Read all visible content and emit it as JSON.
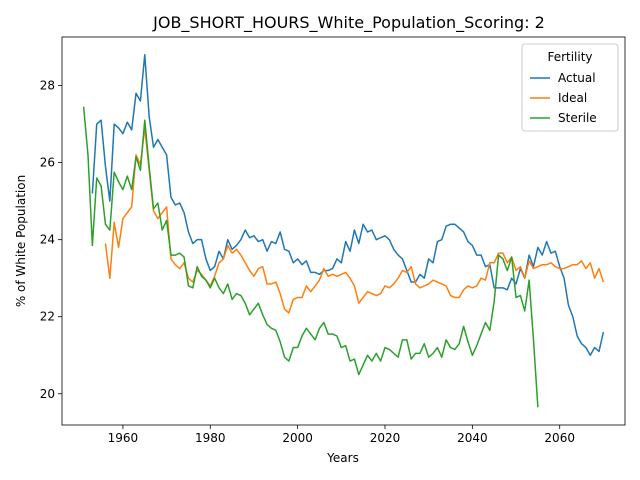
{
  "chart_data": {
    "type": "line",
    "title": "JOB_SHORT_HOURS_White_Population_Scoring: 2",
    "xlabel": "Years",
    "ylabel": "% of White Population",
    "xlim": [
      1946.05,
      2074.95
    ],
    "ylim": [
      19.19,
      29.26
    ],
    "xticks": [
      1960,
      1980,
      2000,
      2020,
      2040,
      2060
    ],
    "yticks": [
      20,
      22,
      24,
      26,
      28
    ],
    "grid": false,
    "legend": {
      "title": "Fertility",
      "placement": "upper right"
    },
    "series": [
      {
        "name": "Actual",
        "color": "#1f77b4",
        "x": [
          1953,
          1954,
          1955,
          1956,
          1957,
          1958,
          1959,
          1960,
          1961,
          1962,
          1963,
          1964,
          1965,
          1966,
          1967,
          1968,
          1969,
          1970,
          1971,
          1972,
          1973,
          1974,
          1975,
          1976,
          1977,
          1978,
          1979,
          1980,
          1981,
          1982,
          1983,
          1984,
          1985,
          1986,
          1987,
          1988,
          1989,
          1990,
          1991,
          1992,
          1993,
          1994,
          1995,
          1996,
          1997,
          1998,
          1999,
          2000,
          2001,
          2002,
          2003,
          2004,
          2005,
          2006,
          2007,
          2008,
          2009,
          2010,
          2011,
          2012,
          2013,
          2014,
          2015,
          2016,
          2017,
          2018,
          2019,
          2020,
          2021,
          2022,
          2023,
          2024,
          2025,
          2026,
          2027,
          2028,
          2029,
          2030,
          2031,
          2032,
          2033,
          2034,
          2035,
          2036,
          2037,
          2038,
          2039,
          2040,
          2041,
          2042,
          2043,
          2044,
          2045,
          2046,
          2047,
          2048,
          2049,
          2050,
          2051,
          2052,
          2053,
          2054,
          2055,
          2056,
          2057,
          2058,
          2059,
          2060,
          2061,
          2062,
          2063,
          2064,
          2065,
          2066,
          2067,
          2068,
          2069,
          2070
        ],
        "y": [
          25.2,
          27.0,
          27.1,
          25.9,
          25.0,
          27.0,
          26.9,
          26.75,
          27.05,
          26.85,
          27.8,
          27.6,
          28.8,
          27.2,
          26.4,
          26.6,
          26.4,
          26.2,
          25.1,
          24.9,
          24.95,
          24.7,
          24.2,
          23.9,
          24.0,
          24.0,
          23.5,
          23.2,
          23.3,
          23.7,
          23.5,
          24.0,
          23.75,
          23.85,
          24.0,
          24.25,
          24.05,
          24.1,
          23.95,
          24.0,
          23.7,
          23.95,
          23.9,
          24.2,
          23.75,
          23.7,
          23.4,
          23.5,
          23.35,
          23.45,
          23.15,
          23.15,
          23.1,
          23.2,
          23.2,
          23.25,
          23.5,
          23.4,
          23.95,
          23.7,
          24.25,
          23.9,
          24.4,
          24.2,
          24.25,
          24.0,
          24.05,
          24.1,
          24.0,
          23.75,
          23.6,
          23.5,
          23.2,
          22.9,
          22.9,
          23.1,
          23.0,
          23.5,
          23.4,
          23.95,
          24.0,
          24.35,
          24.4,
          24.4,
          24.3,
          24.2,
          23.95,
          23.85,
          23.6,
          23.6,
          23.3,
          23.35,
          22.75,
          22.75,
          22.75,
          22.7,
          23.0,
          22.85,
          23.25,
          23.0,
          23.6,
          23.3,
          23.8,
          23.6,
          23.95,
          23.65,
          23.7,
          23.3,
          23.0,
          22.3,
          22.0,
          21.5,
          21.3,
          21.2,
          21.0,
          21.2,
          21.1,
          21.6
        ]
      },
      {
        "name": "Ideal",
        "color": "#ff7f0e",
        "x": [
          1956,
          1957,
          1958,
          1959,
          1960,
          1961,
          1962,
          1963,
          1964,
          1965,
          1966,
          1967,
          1968,
          1969,
          1970,
          1971,
          1972,
          1973,
          1974,
          1975,
          1976,
          1977,
          1978,
          1979,
          1980,
          1981,
          1982,
          1983,
          1984,
          1985,
          1986,
          1987,
          1988,
          1989,
          1990,
          1991,
          1992,
          1993,
          1994,
          1995,
          1996,
          1997,
          1998,
          1999,
          2000,
          2001,
          2002,
          2003,
          2004,
          2005,
          2006,
          2007,
          2008,
          2009,
          2010,
          2011,
          2012,
          2013,
          2014,
          2015,
          2016,
          2017,
          2018,
          2019,
          2020,
          2021,
          2022,
          2023,
          2024,
          2025,
          2026,
          2027,
          2028,
          2029,
          2030,
          2031,
          2032,
          2033,
          2034,
          2035,
          2036,
          2037,
          2038,
          2039,
          2040,
          2041,
          2042,
          2043,
          2044,
          2045,
          2046,
          2047,
          2048,
          2049,
          2050,
          2051,
          2052,
          2053,
          2054,
          2055,
          2056,
          2057,
          2058,
          2059,
          2060,
          2061,
          2062,
          2063,
          2064,
          2065,
          2066,
          2067,
          2068,
          2069,
          2070
        ],
        "y": [
          23.9,
          23.0,
          24.45,
          23.8,
          24.55,
          24.7,
          24.85,
          26.2,
          25.95,
          26.9,
          25.8,
          24.75,
          24.55,
          24.7,
          24.85,
          23.5,
          23.35,
          23.25,
          23.4,
          23.0,
          22.9,
          23.2,
          23.1,
          22.95,
          22.8,
          23.05,
          23.4,
          23.5,
          23.85,
          23.65,
          23.75,
          23.6,
          23.4,
          23.2,
          23.05,
          23.25,
          23.3,
          22.85,
          22.85,
          22.9,
          22.6,
          22.2,
          22.1,
          22.45,
          22.5,
          22.5,
          22.8,
          22.65,
          22.8,
          22.95,
          23.25,
          23.05,
          23.1,
          23.05,
          23.1,
          23.15,
          23.0,
          22.8,
          22.35,
          22.5,
          22.65,
          22.6,
          22.55,
          22.6,
          22.8,
          22.75,
          22.85,
          23.0,
          23.2,
          23.15,
          23.3,
          22.85,
          22.75,
          22.8,
          22.85,
          22.95,
          22.9,
          22.85,
          22.8,
          22.55,
          22.5,
          22.5,
          22.7,
          22.8,
          22.75,
          22.8,
          23.0,
          22.95,
          23.4,
          23.4,
          23.65,
          23.65,
          23.4,
          23.55,
          23.2,
          23.3,
          23.0,
          23.45,
          23.25,
          23.3,
          23.35,
          23.35,
          23.4,
          23.3,
          23.25,
          23.25,
          23.3,
          23.35,
          23.35,
          23.45,
          23.25,
          23.4,
          23.0,
          23.25,
          22.9
        ]
      },
      {
        "name": "Sterile",
        "color": "#2ca02c",
        "x": [
          1951,
          1952,
          1953,
          1954,
          1955,
          1956,
          1957,
          1958,
          1959,
          1960,
          1961,
          1962,
          1963,
          1964,
          1965,
          1966,
          1967,
          1968,
          1969,
          1970,
          1971,
          1972,
          1973,
          1974,
          1975,
          1976,
          1977,
          1978,
          1979,
          1980,
          1981,
          1982,
          1983,
          1984,
          1985,
          1986,
          1987,
          1988,
          1989,
          1990,
          1991,
          1992,
          1993,
          1994,
          1995,
          1996,
          1997,
          1998,
          1999,
          2000,
          2001,
          2002,
          2003,
          2004,
          2005,
          2006,
          2007,
          2008,
          2009,
          2010,
          2011,
          2012,
          2013,
          2014,
          2015,
          2016,
          2017,
          2018,
          2019,
          2020,
          2021,
          2022,
          2023,
          2024,
          2025,
          2026,
          2027,
          2028,
          2029,
          2030,
          2031,
          2032,
          2033,
          2034,
          2035,
          2036,
          2037,
          2038,
          2039,
          2040,
          2041,
          2042,
          2043,
          2044,
          2045,
          2046,
          2047,
          2048,
          2049,
          2050,
          2051,
          2052,
          2053,
          2054,
          2055
        ],
        "y": [
          27.45,
          26.2,
          23.85,
          25.6,
          25.4,
          24.4,
          24.25,
          25.75,
          25.5,
          25.3,
          25.65,
          25.3,
          26.15,
          25.8,
          27.1,
          25.9,
          24.8,
          24.95,
          24.25,
          24.5,
          23.6,
          23.6,
          23.65,
          23.55,
          22.8,
          22.75,
          23.3,
          23.05,
          22.95,
          22.75,
          23.0,
          22.75,
          22.6,
          22.85,
          22.45,
          22.6,
          22.55,
          22.35,
          22.05,
          22.2,
          22.35,
          22.05,
          21.8,
          21.7,
          21.65,
          21.35,
          20.95,
          20.85,
          21.2,
          21.2,
          21.5,
          21.7,
          21.55,
          21.4,
          21.7,
          21.85,
          21.55,
          21.55,
          21.5,
          21.2,
          21.25,
          20.85,
          20.9,
          20.5,
          20.75,
          21.0,
          20.85,
          21.05,
          20.85,
          21.2,
          21.15,
          21.05,
          20.95,
          21.4,
          21.4,
          20.9,
          21.05,
          21.05,
          21.3,
          20.95,
          21.05,
          21.2,
          20.95,
          21.4,
          21.2,
          21.15,
          21.3,
          21.75,
          21.35,
          21.0,
          21.25,
          21.55,
          21.85,
          21.65,
          22.4,
          23.6,
          23.5,
          23.2,
          23.55,
          22.5,
          22.55,
          22.15,
          22.95,
          21.4,
          19.65
        ]
      }
    ]
  }
}
